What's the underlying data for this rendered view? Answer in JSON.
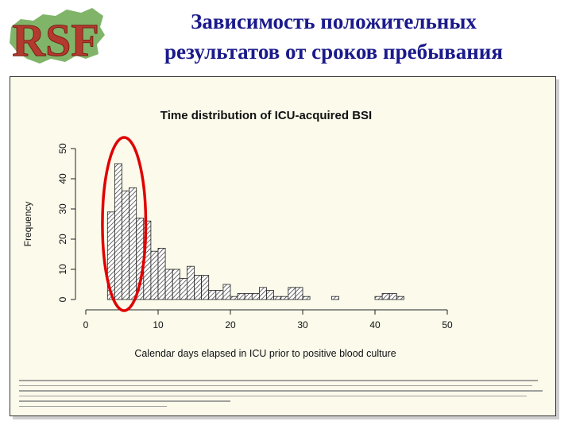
{
  "slide": {
    "title_line1": "Зависимость положительных",
    "title_line2": "результатов от сроков пребывания",
    "logo_text": "RSF",
    "colors": {
      "title": "#1a1a8c",
      "panel_bg": "#fbfaeb",
      "highlight": "#e00000",
      "logo_red": "#b33a2e",
      "logo_green": "#6aa84f"
    }
  },
  "chart_data": {
    "type": "bar",
    "title": "Time distribution of ICU-acquired BSI",
    "xlabel": "Calendar days elapsed in ICU prior to positive blood culture",
    "ylabel": "Frequency",
    "xlim": [
      0,
      50
    ],
    "ylim": [
      0,
      50
    ],
    "xticks": [
      0,
      10,
      20,
      30,
      40,
      50
    ],
    "yticks": [
      0,
      10,
      20,
      30,
      40,
      50
    ],
    "bin_width": 1,
    "bin_starts": [
      3,
      4,
      5,
      6,
      7,
      8,
      9,
      10,
      11,
      12,
      13,
      14,
      15,
      16,
      17,
      18,
      19,
      20,
      21,
      22,
      23,
      24,
      25,
      26,
      27,
      28,
      29,
      30,
      31,
      32,
      33,
      34,
      35,
      36,
      37,
      38,
      39,
      40,
      41,
      42,
      43
    ],
    "values": [
      29,
      45,
      36,
      37,
      27,
      26,
      16,
      17,
      10,
      10,
      7,
      11,
      8,
      8,
      3,
      3,
      5,
      1,
      2,
      2,
      2,
      4,
      3,
      1,
      1,
      4,
      4,
      1,
      0,
      0,
      0,
      1,
      0,
      0,
      0,
      0,
      0,
      1,
      2,
      2,
      1
    ],
    "fill": "hatched",
    "grid": false,
    "annotation": {
      "type": "ellipse",
      "color": "#e00000",
      "center_x": 5.3,
      "center_y": 25,
      "half_width_days": 3,
      "half_height_freq": 25
    }
  }
}
